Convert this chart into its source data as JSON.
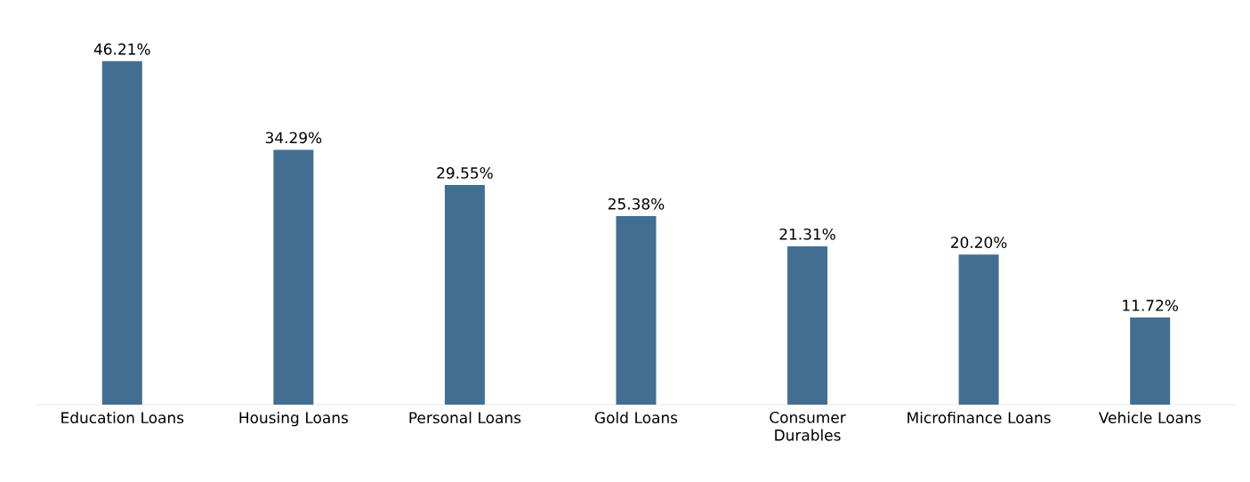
{
  "chart_data": {
    "type": "bar",
    "categories": [
      "Education Loans",
      "Housing Loans",
      "Personal Loans",
      "Gold Loans",
      "Consumer Durables",
      "Microfinance Loans",
      "Vehicle Loans"
    ],
    "values": [
      46.21,
      34.29,
      29.55,
      25.38,
      21.31,
      20.2,
      11.72
    ],
    "value_labels": [
      "46.21%",
      "34.29%",
      "29.55%",
      "25.38%",
      "21.31%",
      "20.20%",
      "11.72%"
    ],
    "color": "#426e91"
  }
}
